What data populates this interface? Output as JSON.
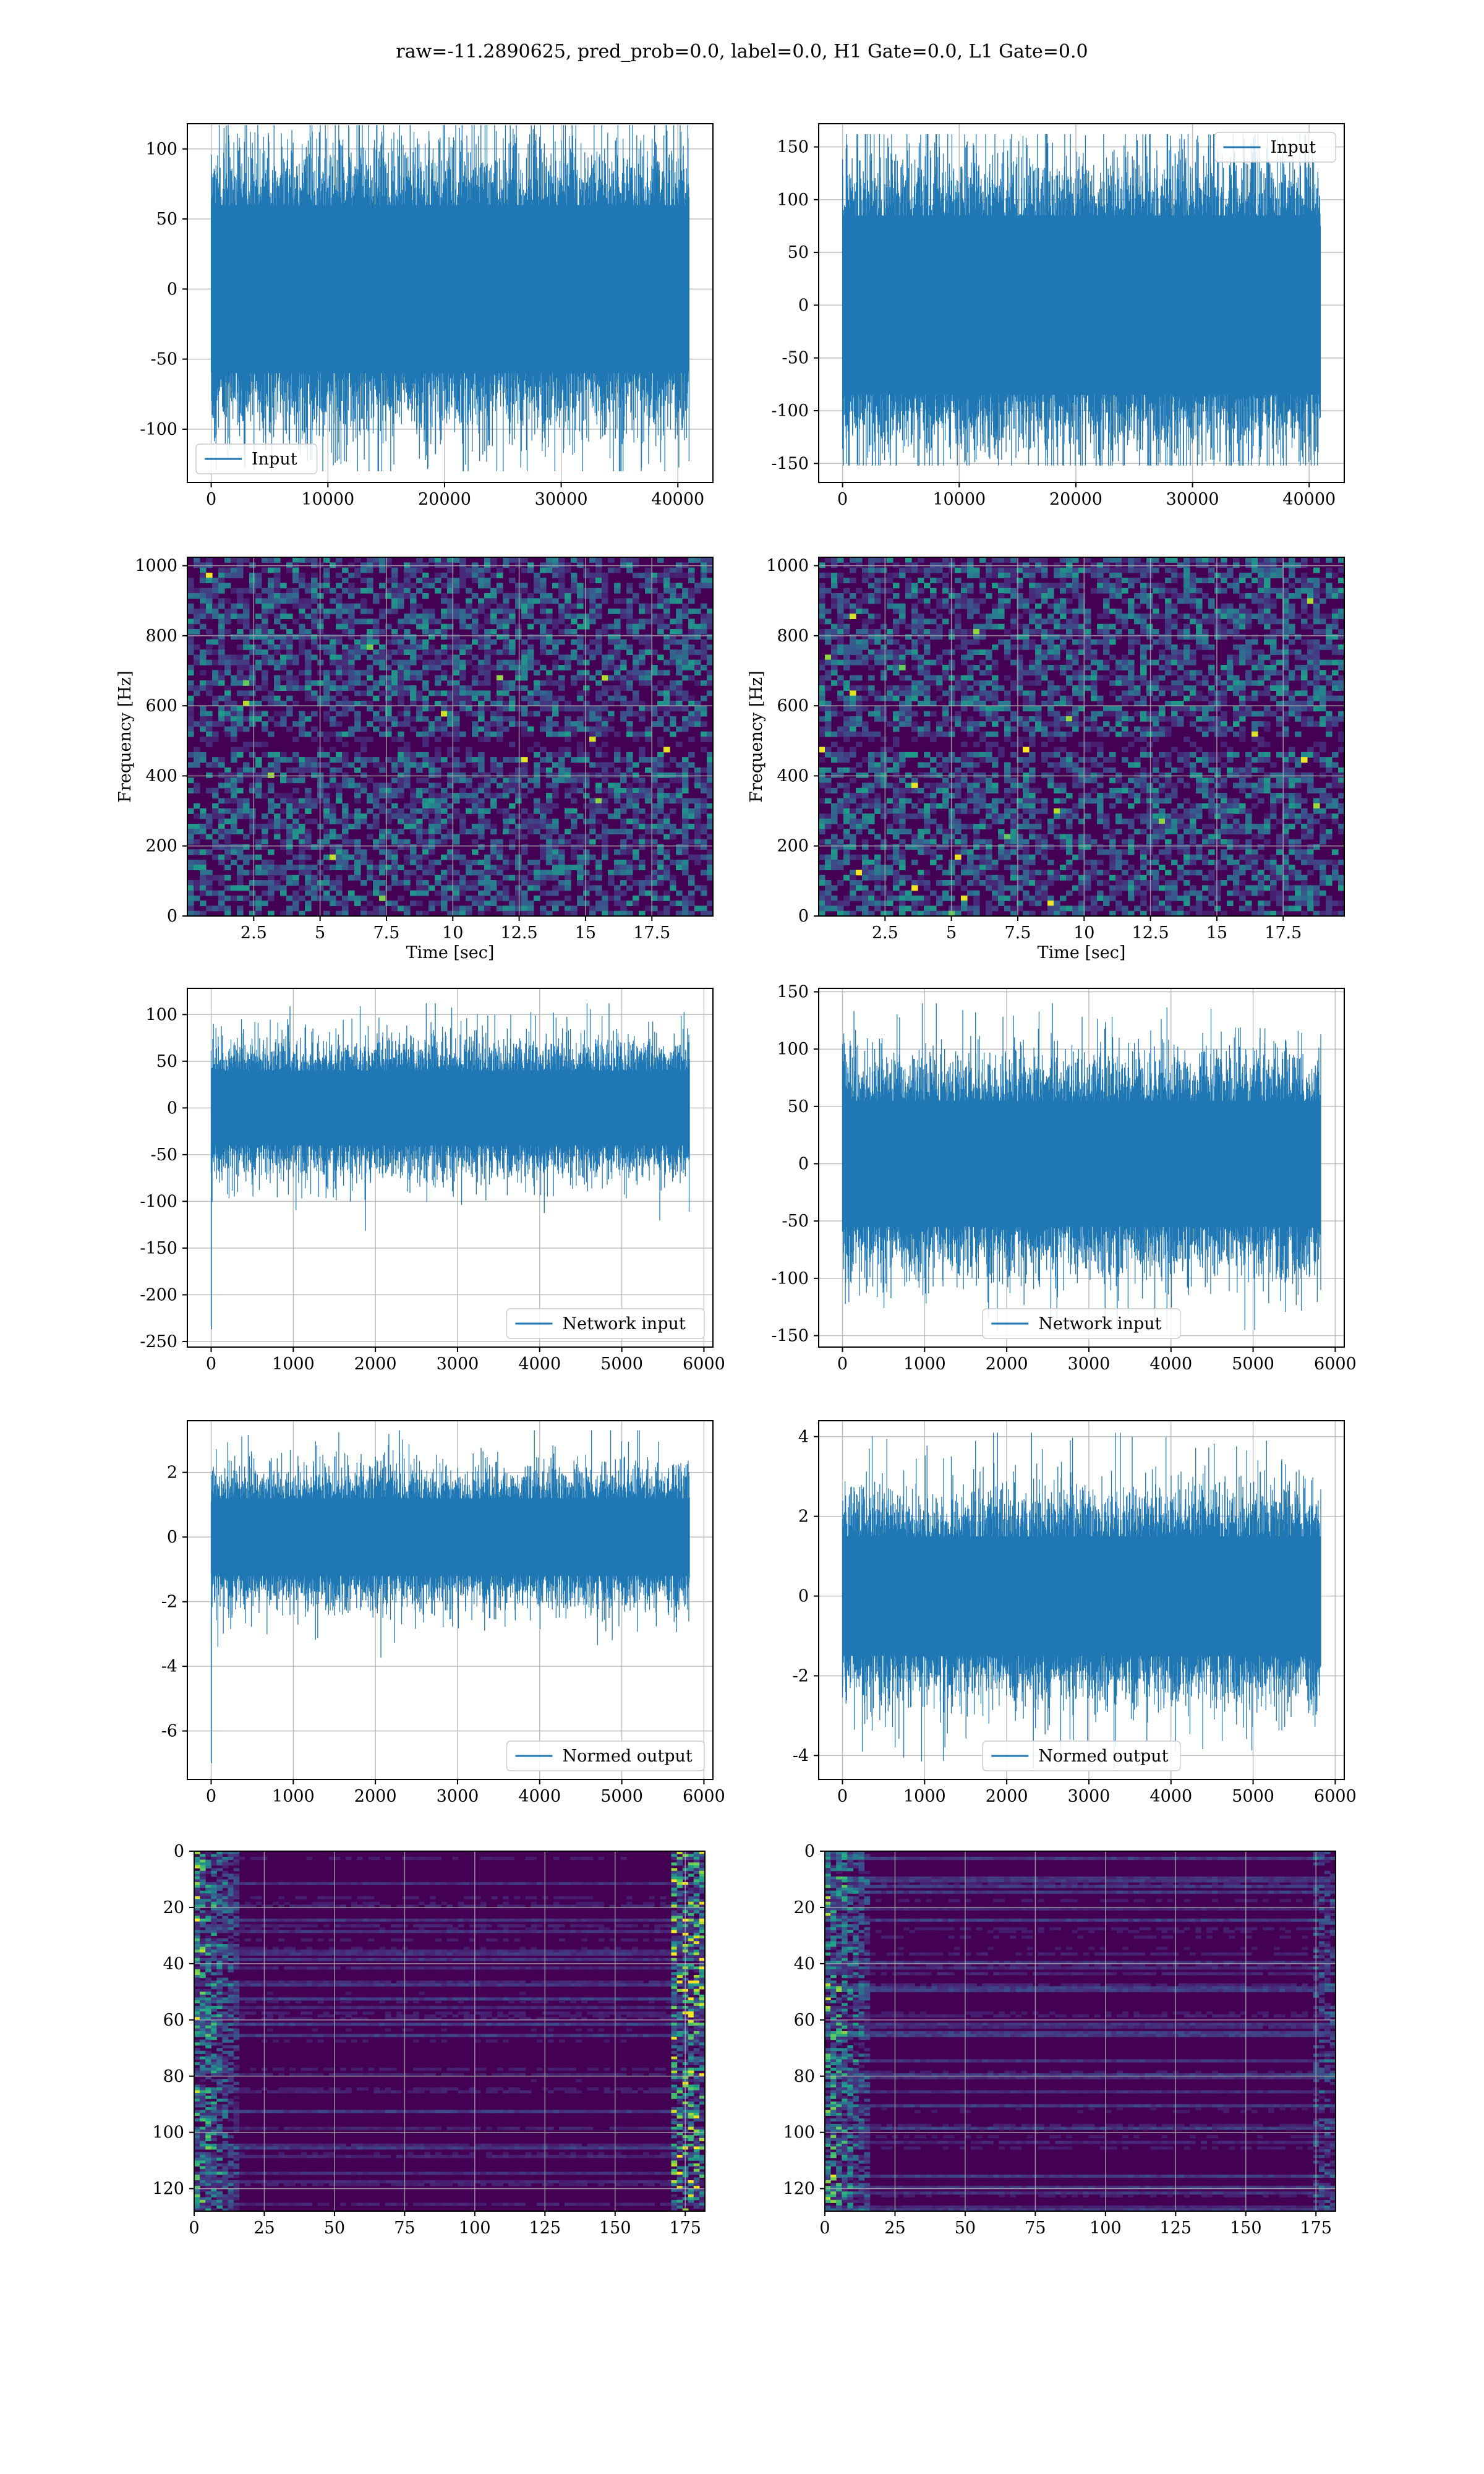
{
  "figure": {
    "title": "raw=-11.2890625, pred_prob=0.0, label=0.0, H1 Gate=0.0, L1 Gate=0.0"
  },
  "colors": {
    "line": "#1f77b4",
    "grid": "#b0b0b0",
    "bg_heat": "#440154"
  },
  "chart_data": [
    {
      "id": "h1-input",
      "type": "line",
      "title": "",
      "xlabel": "",
      "ylabel": "",
      "xlim": [
        -2048,
        43008
      ],
      "ylim": [
        -138,
        118
      ],
      "xticks": [
        0,
        10000,
        20000,
        30000,
        40000
      ],
      "yticks": [
        -100,
        -50,
        0,
        50,
        100
      ],
      "grid": true,
      "legend_position": "lower-left",
      "series": [
        {
          "name": "Input",
          "n_points": 40960,
          "x_range": [
            0,
            40960
          ],
          "envelope": 75,
          "core": 60,
          "peak_min": -130,
          "peak_max": 117
        }
      ]
    },
    {
      "id": "l1-input",
      "type": "line",
      "title": "",
      "xlabel": "",
      "ylabel": "",
      "xlim": [
        -2048,
        43008
      ],
      "ylim": [
        -168,
        172
      ],
      "xticks": [
        0,
        10000,
        20000,
        30000,
        40000
      ],
      "yticks": [
        -150,
        -100,
        -50,
        0,
        50,
        100,
        150
      ],
      "grid": true,
      "legend_position": "upper-right",
      "series": [
        {
          "name": "Input",
          "n_points": 40960,
          "x_range": [
            0,
            40960
          ],
          "envelope": 100,
          "core": 85,
          "peak_min": -152,
          "peak_max": 162
        }
      ]
    },
    {
      "id": "h1-spectrogram",
      "type": "heatmap",
      "title": "",
      "xlabel": "Time [sec]",
      "ylabel": "Frequency [Hz]",
      "xlim": [
        0,
        19.8
      ],
      "ylim": [
        0,
        1024
      ],
      "xticks": [
        2.5,
        5.0,
        7.5,
        10.0,
        12.5,
        15.0,
        17.5
      ],
      "yticks": [
        0,
        200,
        400,
        600,
        800,
        1000
      ],
      "grid": true,
      "colormap": "viridis",
      "dark_band_hz": 500
    },
    {
      "id": "l1-spectrogram",
      "type": "heatmap",
      "title": "",
      "xlabel": "Time [sec]",
      "ylabel": "Frequency [Hz]",
      "xlim": [
        0,
        19.8
      ],
      "ylim": [
        0,
        1024
      ],
      "xticks": [
        2.5,
        5.0,
        7.5,
        10.0,
        12.5,
        15.0,
        17.5
      ],
      "yticks": [
        0,
        200,
        400,
        600,
        800,
        1000
      ],
      "grid": true,
      "colormap": "viridis",
      "dark_band_hz": 500
    },
    {
      "id": "h1-network-input",
      "type": "line",
      "title": "",
      "xlabel": "",
      "ylabel": "",
      "xlim": [
        -290,
        6110
      ],
      "ylim": [
        -256,
        128
      ],
      "xticks": [
        0,
        1000,
        2000,
        3000,
        4000,
        5000,
        6000
      ],
      "yticks": [
        -250,
        -200,
        -150,
        -100,
        -50,
        0,
        50,
        100
      ],
      "grid": true,
      "legend_position": "lower-right",
      "series": [
        {
          "name": "Network input",
          "n_points": 5824,
          "x_range": [
            0,
            5824
          ],
          "envelope": 55,
          "core": 40,
          "peak_min": -237,
          "peak_max": 112
        }
      ]
    },
    {
      "id": "l1-network-input",
      "type": "line",
      "title": "",
      "xlabel": "",
      "ylabel": "",
      "xlim": [
        -290,
        6110
      ],
      "ylim": [
        -160,
        153
      ],
      "xticks": [
        0,
        1000,
        2000,
        3000,
        4000,
        5000,
        6000
      ],
      "yticks": [
        -150,
        -100,
        -50,
        0,
        50,
        100,
        150
      ],
      "grid": true,
      "legend_position": "lower-center",
      "series": [
        {
          "name": "Network input",
          "n_points": 5824,
          "x_range": [
            0,
            5824
          ],
          "envelope": 70,
          "core": 55,
          "peak_min": -145,
          "peak_max": 140
        }
      ]
    },
    {
      "id": "h1-normed-output",
      "type": "line",
      "title": "",
      "xlabel": "",
      "ylabel": "",
      "xlim": [
        -290,
        6110
      ],
      "ylim": [
        -7.5,
        3.6
      ],
      "xticks": [
        0,
        1000,
        2000,
        3000,
        4000,
        5000,
        6000
      ],
      "yticks": [
        -6,
        -4,
        -2,
        0,
        2
      ],
      "grid": true,
      "legend_position": "lower-right",
      "series": [
        {
          "name": "Normed output",
          "n_points": 5824,
          "x_range": [
            0,
            5824
          ],
          "envelope": 1.6,
          "core": 1.2,
          "peak_min": -7.0,
          "peak_max": 3.3
        }
      ]
    },
    {
      "id": "l1-normed-output",
      "type": "line",
      "title": "",
      "xlabel": "",
      "ylabel": "",
      "xlim": [
        -290,
        6110
      ],
      "ylim": [
        -4.6,
        4.4
      ],
      "xticks": [
        0,
        1000,
        2000,
        3000,
        4000,
        5000,
        6000
      ],
      "yticks": [
        -4,
        -2,
        0,
        2,
        4
      ],
      "grid": true,
      "legend_position": "lower-center",
      "series": [
        {
          "name": "Normed output",
          "n_points": 5824,
          "x_range": [
            0,
            5824
          ],
          "envelope": 2.0,
          "core": 1.5,
          "peak_min": -4.3,
          "peak_max": 4.1
        }
      ]
    },
    {
      "id": "h1-feature-map",
      "type": "heatmap",
      "title": "",
      "xlabel": "",
      "ylabel": "",
      "xlim": [
        0,
        182
      ],
      "ylim": [
        128,
        0
      ],
      "xticks": [
        0,
        25,
        50,
        75,
        100,
        125,
        150,
        175
      ],
      "yticks": [
        0,
        20,
        40,
        60,
        80,
        100,
        120
      ],
      "grid": true,
      "colormap": "viridis",
      "n_rows": 128,
      "n_cols": 182
    },
    {
      "id": "l1-feature-map",
      "type": "heatmap",
      "title": "",
      "xlabel": "",
      "ylabel": "",
      "xlim": [
        0,
        182
      ],
      "ylim": [
        128,
        0
      ],
      "xticks": [
        0,
        25,
        50,
        75,
        100,
        125,
        150,
        175
      ],
      "yticks": [
        0,
        20,
        40,
        60,
        80,
        100,
        120
      ],
      "grid": true,
      "colormap": "viridis",
      "n_rows": 128,
      "n_cols": 182
    }
  ]
}
